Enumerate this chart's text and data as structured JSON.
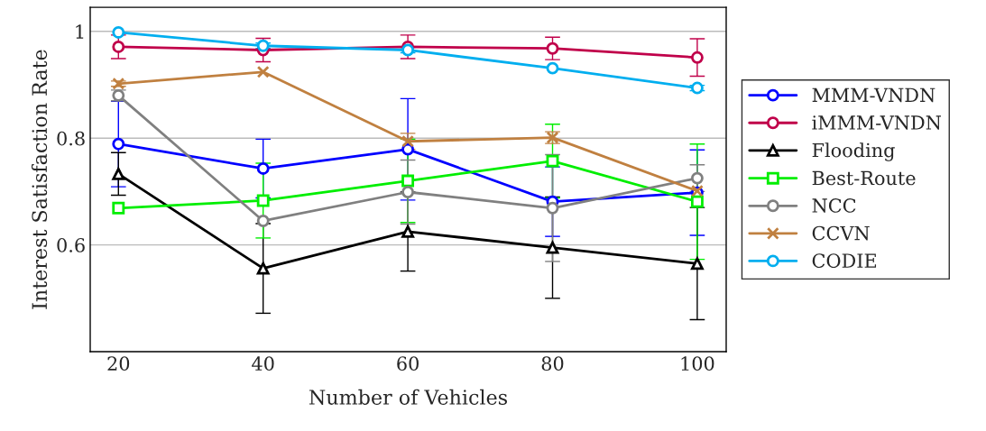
{
  "chart_data": {
    "type": "line",
    "xlabel": "Number of Vehicles",
    "ylabel": "Interest Satisfaction Rate",
    "x": [
      20,
      40,
      60,
      80,
      100
    ],
    "xlim": [
      16.1,
      104
    ],
    "xticks": [
      20,
      40,
      60,
      80,
      100
    ],
    "ylim": [
      0.4,
      1.045
    ],
    "yticks": [
      0.6,
      0.8,
      1
    ],
    "grid": "y",
    "legend": "right",
    "series": [
      {
        "name": "MMM-VNDN",
        "color": "#0000ff",
        "marker": "circle",
        "values": [
          0.789,
          0.743,
          0.779,
          0.681,
          0.698
        ],
        "errors": [
          0.08,
          0.055,
          0.095,
          0.065,
          0.08
        ]
      },
      {
        "name": "iMMM-VNDN",
        "color": "#c0004a",
        "marker": "circle",
        "values": [
          0.971,
          0.965,
          0.971,
          0.968,
          0.951
        ],
        "errors": [
          0.022,
          0.022,
          0.022,
          0.021,
          0.035
        ]
      },
      {
        "name": "Flooding",
        "color": "#000000",
        "marker": "triangle",
        "values": [
          0.733,
          0.556,
          0.625,
          0.595,
          0.565
        ],
        "errors": [
          0.04,
          0.084,
          0.074,
          0.095,
          0.105
        ]
      },
      {
        "name": "Best-Route",
        "color": "#00ee00",
        "marker": "square",
        "values": [
          0.669,
          0.683,
          0.72,
          0.757,
          0.681
        ],
        "errors": [
          null,
          0.07,
          0.078,
          0.069,
          0.108
        ]
      },
      {
        "name": "NCC",
        "color": "#808080",
        "marker": "circle",
        "values": [
          0.88,
          0.645,
          0.699,
          0.669,
          0.725
        ],
        "errors": [
          0.01,
          null,
          0.06,
          0.1,
          0.025
        ]
      },
      {
        "name": "CCVN",
        "color": "#c08040",
        "marker": "cross",
        "values": [
          0.902,
          0.924,
          0.794,
          0.801,
          0.701
        ],
        "errors": [
          0.005,
          null,
          0.015,
          0.011,
          null
        ]
      },
      {
        "name": "CODIE",
        "color": "#00aeef",
        "marker": "circle",
        "values": [
          0.998,
          0.973,
          0.965,
          0.931,
          0.894
        ],
        "errors": [
          null,
          0.005,
          0.005,
          null,
          0.005
        ]
      }
    ]
  }
}
